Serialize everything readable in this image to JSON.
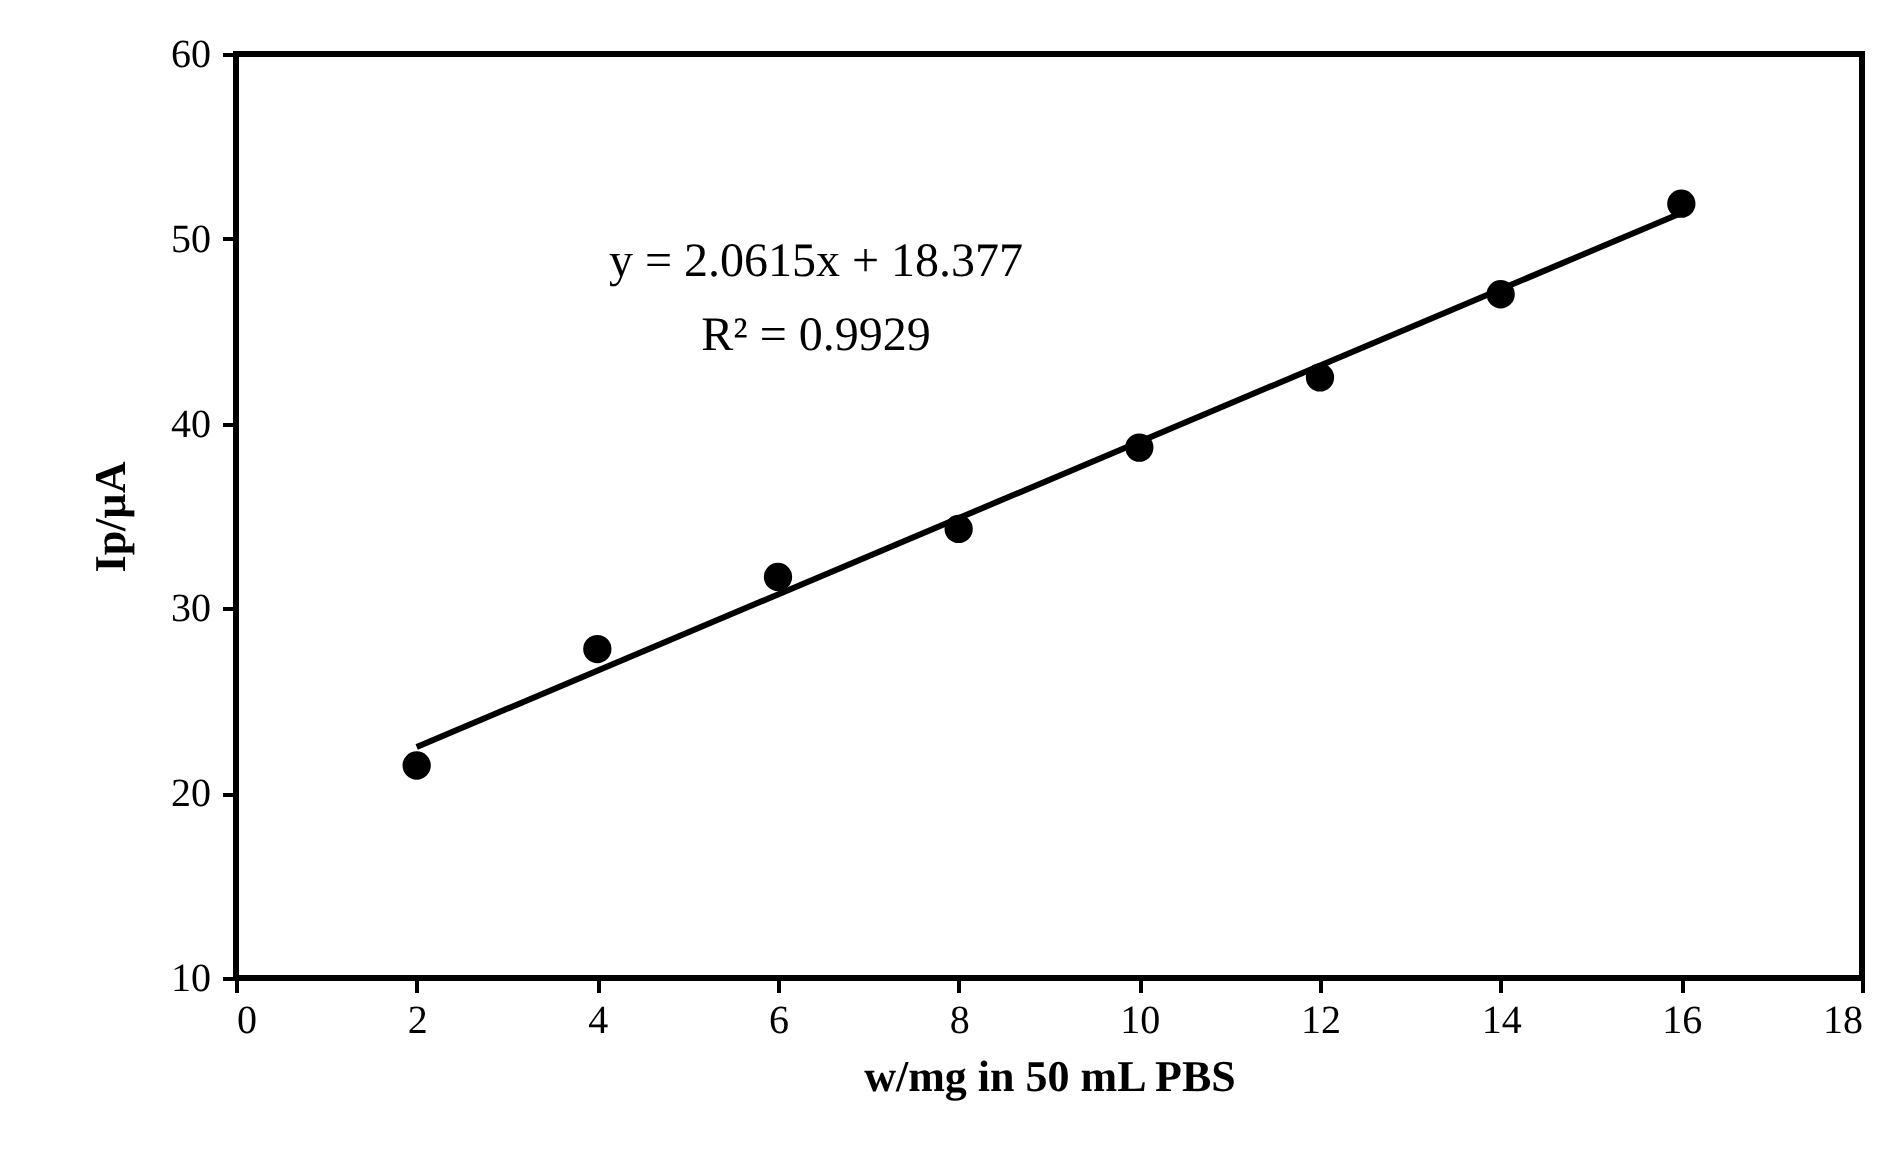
{
  "chart_data": {
    "type": "scatter",
    "xlabel": "w/mg in 50 mL PBS",
    "ylabel": "Ip/µA",
    "x": [
      2,
      4,
      6,
      8,
      10,
      12,
      14,
      16
    ],
    "series": [
      {
        "color": "#000000",
        "marker": "circle",
        "values": [
          21.5,
          27.8,
          31.7,
          34.3,
          38.7,
          42.5,
          47.0,
          51.9
        ]
      },
      {
        "type": "line",
        "color": "#000000",
        "line_style": "solid",
        "x": [
          2,
          16
        ],
        "values": [
          22.5,
          51.4
        ]
      }
    ],
    "xlim": [
      0,
      18
    ],
    "xticks": [
      0,
      2,
      4,
      6,
      8,
      10,
      12,
      14,
      16,
      18
    ],
    "ylim": [
      10,
      60
    ],
    "yticks": [
      10,
      20,
      30,
      40,
      50,
      60
    ],
    "grid": false,
    "annotations": [
      "y = 2.0615x + 18.377",
      "R² = 0.9929"
    ]
  }
}
